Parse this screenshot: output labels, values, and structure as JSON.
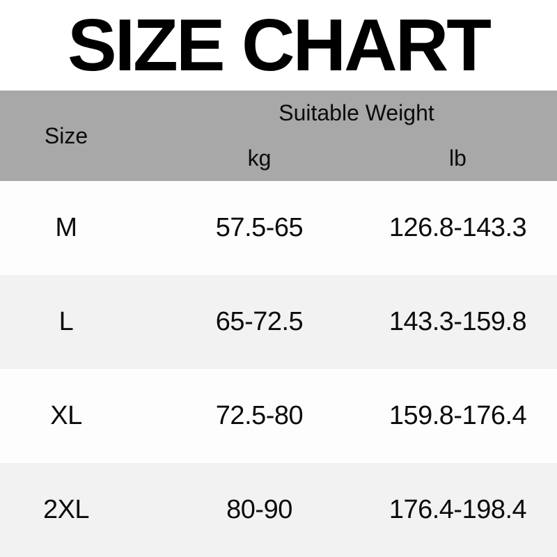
{
  "chart_data": {
    "type": "table",
    "title": "SIZE CHART",
    "header": {
      "size_label": "Size",
      "group_label": "Suitable Weight",
      "unit_kg_label": "kg",
      "unit_lb_label": "lb"
    },
    "columns": [
      "Size",
      "kg",
      "lb"
    ],
    "rows": [
      {
        "size": "M",
        "kg": "57.5-65",
        "lb": "126.8-143.3"
      },
      {
        "size": "L",
        "kg": "65-72.5",
        "lb": "143.3-159.8"
      },
      {
        "size": "XL",
        "kg": "72.5-80",
        "lb": "159.8-176.4"
      },
      {
        "size": "2XL",
        "kg": "80-90",
        "lb": "176.4-198.4"
      }
    ]
  },
  "colors": {
    "header_bg": "#a8a8a8",
    "row_bg": "#fdfdfd",
    "row_alt_bg": "#f2f2f2",
    "title_color": "#000000",
    "text_color": "#0b0b0b"
  }
}
